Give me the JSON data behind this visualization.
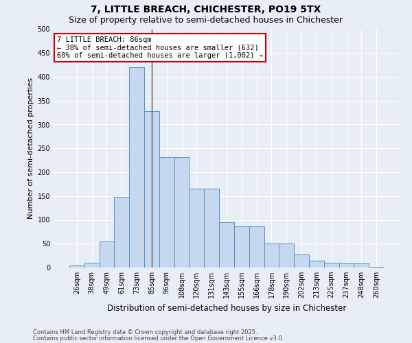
{
  "title": "7, LITTLE BREACH, CHICHESTER, PO19 5TX",
  "subtitle": "Size of property relative to semi-detached houses in Chichester",
  "xlabel": "Distribution of semi-detached houses by size in Chichester",
  "ylabel": "Number of semi-detached properties",
  "footnote1": "Contains HM Land Registry data © Crown copyright and database right 2025.",
  "footnote2": "Contains public sector information licensed under the Open Government Licence v3.0.",
  "categories": [
    "26sqm",
    "38sqm",
    "49sqm",
    "61sqm",
    "73sqm",
    "85sqm",
    "96sqm",
    "108sqm",
    "120sqm",
    "131sqm",
    "143sqm",
    "155sqm",
    "166sqm",
    "178sqm",
    "190sqm",
    "202sqm",
    "213sqm",
    "225sqm",
    "237sqm",
    "248sqm",
    "260sqm"
  ],
  "bar_values": [
    4,
    10,
    55,
    148,
    420,
    328,
    232,
    232,
    165,
    165,
    95,
    87,
    87,
    50,
    50,
    28,
    15,
    10,
    8,
    8,
    2
  ],
  "bar_color": "#c5d8f0",
  "bar_edgecolor": "#5a8fc4",
  "subject_line_color": "#555555",
  "subject_bin_index": 5,
  "annotation_text": "7 LITTLE BREACH: 86sqm\n← 38% of semi-detached houses are smaller (632)\n60% of semi-detached houses are larger (1,002) →",
  "annotation_box_facecolor": "#ffffff",
  "annotation_box_edgecolor": "#cc0000",
  "ylim": [
    0,
    500
  ],
  "yticks": [
    0,
    50,
    100,
    150,
    200,
    250,
    300,
    350,
    400,
    450,
    500
  ],
  "bg_color": "#e8eef5",
  "grid_color": "#ffffff",
  "title_fontsize": 10,
  "subtitle_fontsize": 9,
  "xlabel_fontsize": 8.5,
  "ylabel_fontsize": 8,
  "tick_fontsize": 7,
  "footnote_fontsize": 6,
  "annotation_fontsize": 7.5
}
